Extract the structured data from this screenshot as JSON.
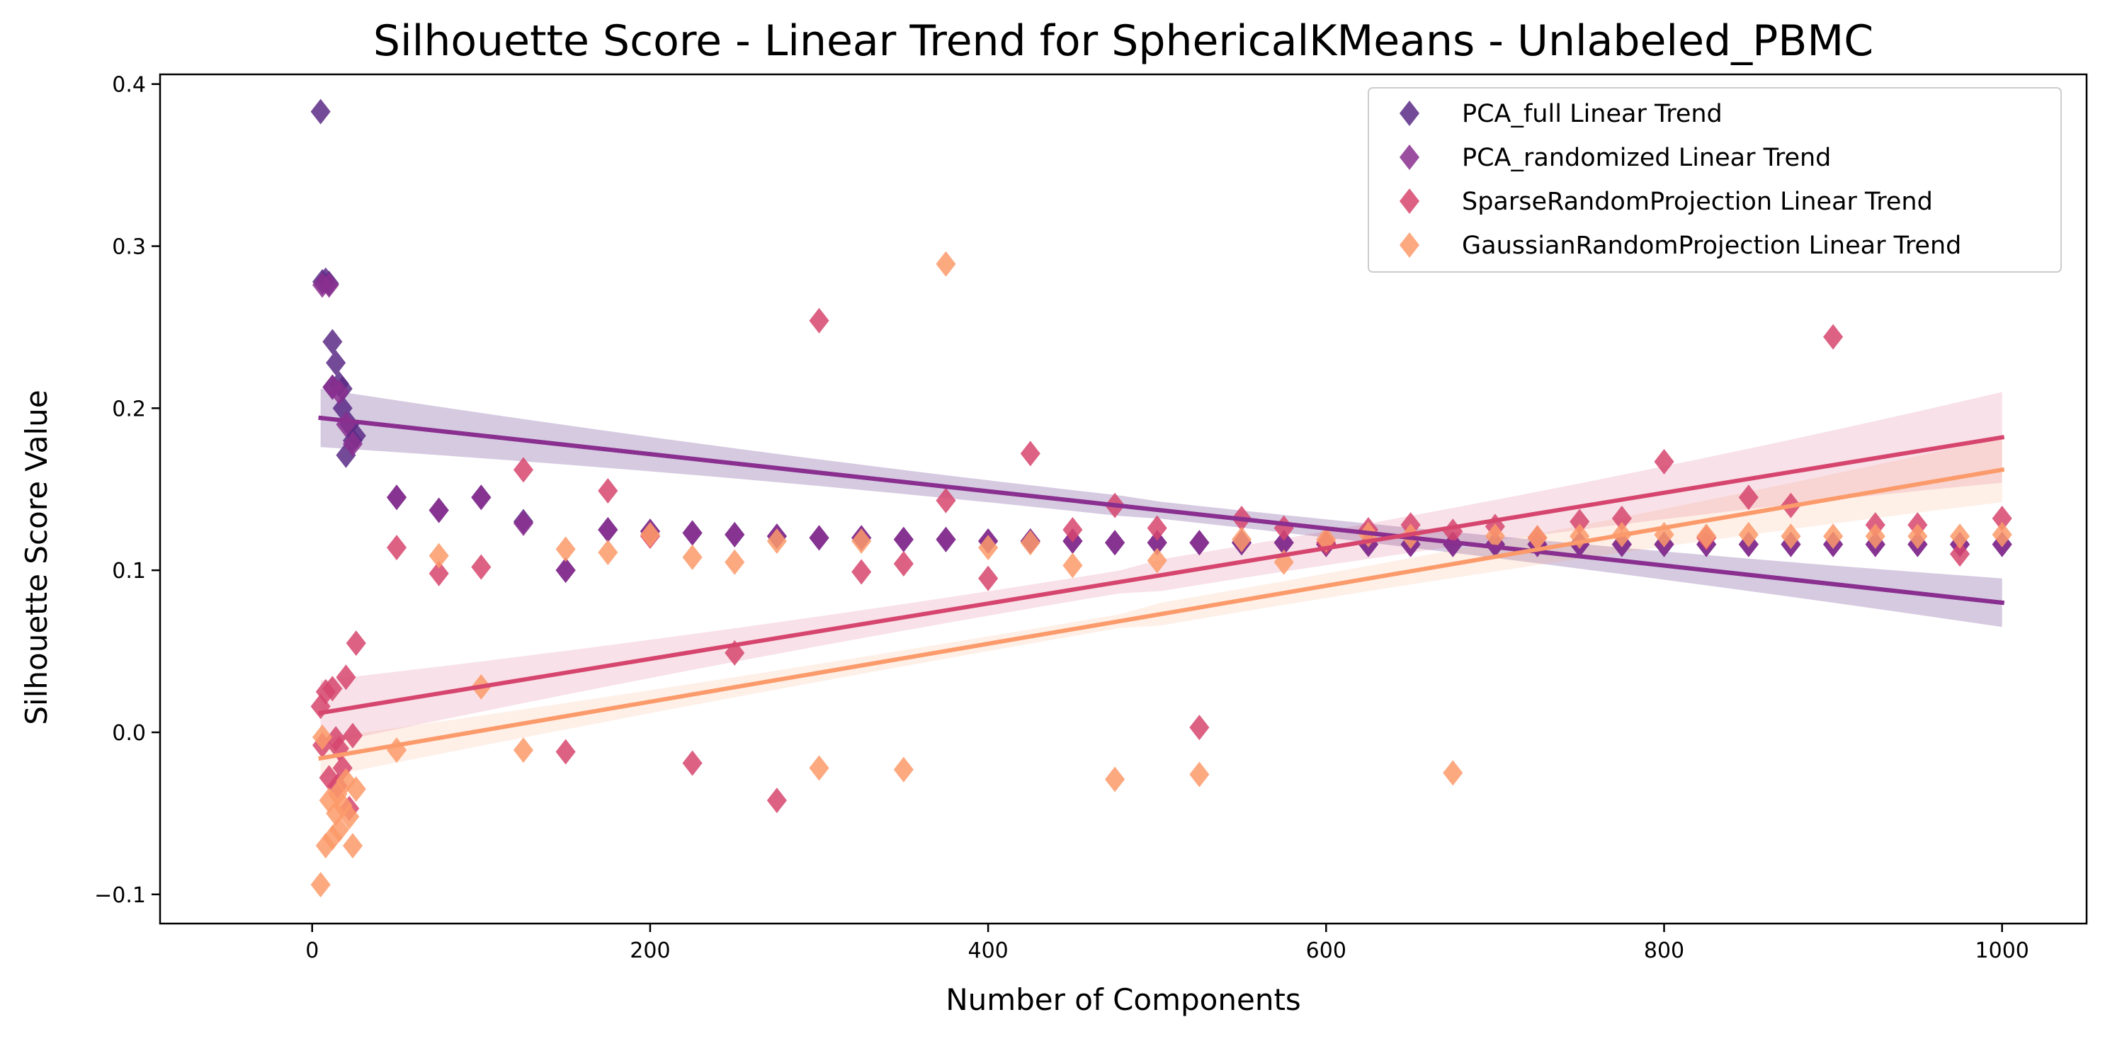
{
  "chart_data": {
    "type": "scatter",
    "title": "Silhouette Score - Linear Trend for SphericalKMeans - Unlabeled_PBMC",
    "xlabel": "Number of Components",
    "ylabel": "Silhouette Score Value",
    "xlim": [
      -90,
      1050
    ],
    "ylim": [
      -0.118,
      0.406
    ],
    "xticks": [
      0,
      200,
      400,
      600,
      800,
      1000
    ],
    "xtick_labels": [
      "0",
      "200",
      "400",
      "600",
      "800",
      "1000"
    ],
    "yticks": [
      -0.1,
      0.0,
      0.1,
      0.2,
      0.3,
      0.4
    ],
    "ytick_labels": [
      "−0.1",
      "0.0",
      "0.1",
      "0.2",
      "0.3",
      "0.4"
    ],
    "grid": false,
    "legend_position": "top-right",
    "series": [
      {
        "name": "PCA_full Linear Trend",
        "color": "#5b2a86",
        "marker": "diamond",
        "trend": {
          "x": [
            5,
            1000
          ],
          "y": [
            0.194,
            0.08
          ],
          "ci_halfwidth": [
            0.018,
            0.015
          ]
        },
        "points": [
          [
            5,
            0.383
          ],
          [
            6,
            0.278
          ],
          [
            8,
            0.279
          ],
          [
            10,
            0.277
          ],
          [
            12,
            0.241
          ],
          [
            12,
            0.213
          ],
          [
            14,
            0.228
          ],
          [
            16,
            0.215
          ],
          [
            18,
            0.212
          ],
          [
            18,
            0.2
          ],
          [
            20,
            0.171
          ],
          [
            22,
            0.19
          ],
          [
            24,
            0.18
          ],
          [
            26,
            0.183
          ],
          [
            50,
            0.145
          ],
          [
            75,
            0.137
          ],
          [
            100,
            0.145
          ],
          [
            125,
            0.13
          ],
          [
            150,
            0.1
          ],
          [
            175,
            0.125
          ],
          [
            200,
            0.124
          ],
          [
            225,
            0.123
          ],
          [
            250,
            0.122
          ],
          [
            275,
            0.121
          ],
          [
            300,
            0.12
          ],
          [
            325,
            0.12
          ],
          [
            350,
            0.119
          ],
          [
            375,
            0.119
          ],
          [
            400,
            0.118
          ],
          [
            425,
            0.118
          ],
          [
            450,
            0.118
          ],
          [
            475,
            0.117
          ],
          [
            500,
            0.117
          ],
          [
            525,
            0.117
          ],
          [
            550,
            0.117
          ],
          [
            575,
            0.117
          ],
          [
            600,
            0.116
          ],
          [
            625,
            0.116
          ],
          [
            650,
            0.116
          ],
          [
            675,
            0.116
          ],
          [
            700,
            0.116
          ],
          [
            725,
            0.116
          ],
          [
            750,
            0.116
          ],
          [
            775,
            0.116
          ],
          [
            800,
            0.116
          ],
          [
            825,
            0.116
          ],
          [
            850,
            0.116
          ],
          [
            875,
            0.116
          ],
          [
            900,
            0.116
          ],
          [
            925,
            0.116
          ],
          [
            950,
            0.116
          ],
          [
            975,
            0.116
          ],
          [
            1000,
            0.116
          ]
        ]
      },
      {
        "name": "PCA_randomized Linear Trend",
        "color": "#8a2f8f",
        "marker": "diamond",
        "trend": {
          "x": [
            5,
            1000
          ],
          "y": [
            0.194,
            0.08
          ],
          "ci_halfwidth": [
            0.018,
            0.015
          ]
        },
        "points": [
          [
            6,
            0.276
          ],
          [
            10,
            0.276
          ],
          [
            12,
            0.213
          ],
          [
            16,
            0.21
          ],
          [
            20,
            0.19
          ],
          [
            24,
            0.178
          ],
          [
            50,
            0.145
          ],
          [
            75,
            0.137
          ],
          [
            100,
            0.145
          ],
          [
            125,
            0.129
          ],
          [
            150,
            0.1
          ],
          [
            175,
            0.125
          ],
          [
            200,
            0.124
          ],
          [
            225,
            0.123
          ],
          [
            250,
            0.122
          ],
          [
            275,
            0.121
          ],
          [
            300,
            0.12
          ],
          [
            325,
            0.12
          ],
          [
            350,
            0.119
          ],
          [
            375,
            0.119
          ],
          [
            400,
            0.118
          ],
          [
            425,
            0.118
          ],
          [
            450,
            0.118
          ],
          [
            475,
            0.117
          ],
          [
            500,
            0.117
          ],
          [
            525,
            0.117
          ],
          [
            550,
            0.117
          ],
          [
            575,
            0.117
          ],
          [
            600,
            0.116
          ],
          [
            625,
            0.116
          ],
          [
            650,
            0.116
          ],
          [
            675,
            0.116
          ],
          [
            700,
            0.116
          ],
          [
            725,
            0.116
          ],
          [
            750,
            0.116
          ],
          [
            775,
            0.116
          ],
          [
            800,
            0.116
          ],
          [
            825,
            0.116
          ],
          [
            850,
            0.116
          ],
          [
            875,
            0.116
          ],
          [
            900,
            0.116
          ],
          [
            925,
            0.116
          ],
          [
            950,
            0.116
          ],
          [
            975,
            0.116
          ],
          [
            1000,
            0.116
          ]
        ]
      },
      {
        "name": "SparseRandomProjection Linear Trend",
        "color": "#d6456d",
        "marker": "diamond",
        "trend": {
          "x": [
            5,
            1000
          ],
          "y": [
            0.012,
            0.182
          ],
          "ci_halfwidth": [
            0.02,
            0.028
          ]
        },
        "points": [
          [
            5,
            0.016
          ],
          [
            6,
            -0.008
          ],
          [
            8,
            0.025
          ],
          [
            10,
            -0.028
          ],
          [
            12,
            0.027
          ],
          [
            14,
            -0.004
          ],
          [
            15,
            -0.033
          ],
          [
            16,
            -0.01
          ],
          [
            18,
            -0.022
          ],
          [
            20,
            0.034
          ],
          [
            22,
            -0.047
          ],
          [
            24,
            -0.002
          ],
          [
            26,
            0.055
          ],
          [
            50,
            0.114
          ],
          [
            75,
            0.098
          ],
          [
            100,
            0.102
          ],
          [
            125,
            0.162
          ],
          [
            150,
            -0.012
          ],
          [
            175,
            0.149
          ],
          [
            200,
            0.121
          ],
          [
            225,
            -0.019
          ],
          [
            250,
            0.049
          ],
          [
            275,
            -0.042
          ],
          [
            300,
            0.254
          ],
          [
            325,
            0.099
          ],
          [
            350,
            0.104
          ],
          [
            375,
            0.143
          ],
          [
            400,
            0.095
          ],
          [
            425,
            0.172
          ],
          [
            450,
            0.125
          ],
          [
            475,
            0.14
          ],
          [
            500,
            0.126
          ],
          [
            525,
            0.003
          ],
          [
            550,
            0.132
          ],
          [
            575,
            0.126
          ],
          [
            600,
            0.117
          ],
          [
            625,
            0.125
          ],
          [
            650,
            0.128
          ],
          [
            675,
            0.124
          ],
          [
            700,
            0.127
          ],
          [
            725,
            0.12
          ],
          [
            750,
            0.13
          ],
          [
            775,
            0.132
          ],
          [
            800,
            0.167
          ],
          [
            825,
            0.12
          ],
          [
            850,
            0.145
          ],
          [
            875,
            0.14
          ],
          [
            900,
            0.244
          ],
          [
            925,
            0.128
          ],
          [
            950,
            0.128
          ],
          [
            975,
            0.11
          ],
          [
            1000,
            0.132
          ]
        ]
      },
      {
        "name": "GaussianRandomProjection Linear Trend",
        "color": "#fb9a6a",
        "marker": "diamond",
        "trend": {
          "x": [
            5,
            1000
          ],
          "y": [
            -0.016,
            0.162
          ],
          "ci_halfwidth": [
            0.012,
            0.02
          ]
        },
        "points": [
          [
            5,
            -0.094
          ],
          [
            6,
            -0.003
          ],
          [
            8,
            -0.07
          ],
          [
            10,
            -0.042
          ],
          [
            12,
            -0.065
          ],
          [
            14,
            -0.05
          ],
          [
            15,
            -0.038
          ],
          [
            16,
            -0.06
          ],
          [
            18,
            -0.045
          ],
          [
            20,
            -0.03
          ],
          [
            22,
            -0.052
          ],
          [
            24,
            -0.07
          ],
          [
            26,
            -0.035
          ],
          [
            50,
            -0.011
          ],
          [
            75,
            0.109
          ],
          [
            100,
            0.028
          ],
          [
            125,
            -0.011
          ],
          [
            150,
            0.113
          ],
          [
            175,
            0.111
          ],
          [
            200,
            0.122
          ],
          [
            225,
            0.108
          ],
          [
            250,
            0.105
          ],
          [
            275,
            0.118
          ],
          [
            300,
            -0.022
          ],
          [
            325,
            0.118
          ],
          [
            350,
            -0.023
          ],
          [
            375,
            0.289
          ],
          [
            400,
            0.114
          ],
          [
            425,
            0.117
          ],
          [
            450,
            0.103
          ],
          [
            475,
            -0.029
          ],
          [
            500,
            0.106
          ],
          [
            525,
            -0.026
          ],
          [
            550,
            0.119
          ],
          [
            575,
            0.105
          ],
          [
            600,
            0.119
          ],
          [
            625,
            0.122
          ],
          [
            650,
            0.121
          ],
          [
            675,
            -0.025
          ],
          [
            700,
            0.121
          ],
          [
            725,
            0.12
          ],
          [
            750,
            0.121
          ],
          [
            775,
            0.122
          ],
          [
            800,
            0.122
          ],
          [
            825,
            0.121
          ],
          [
            850,
            0.122
          ],
          [
            875,
            0.121
          ],
          [
            900,
            0.121
          ],
          [
            925,
            0.121
          ],
          [
            950,
            0.121
          ],
          [
            975,
            0.121
          ],
          [
            1000,
            0.122
          ]
        ]
      }
    ]
  }
}
